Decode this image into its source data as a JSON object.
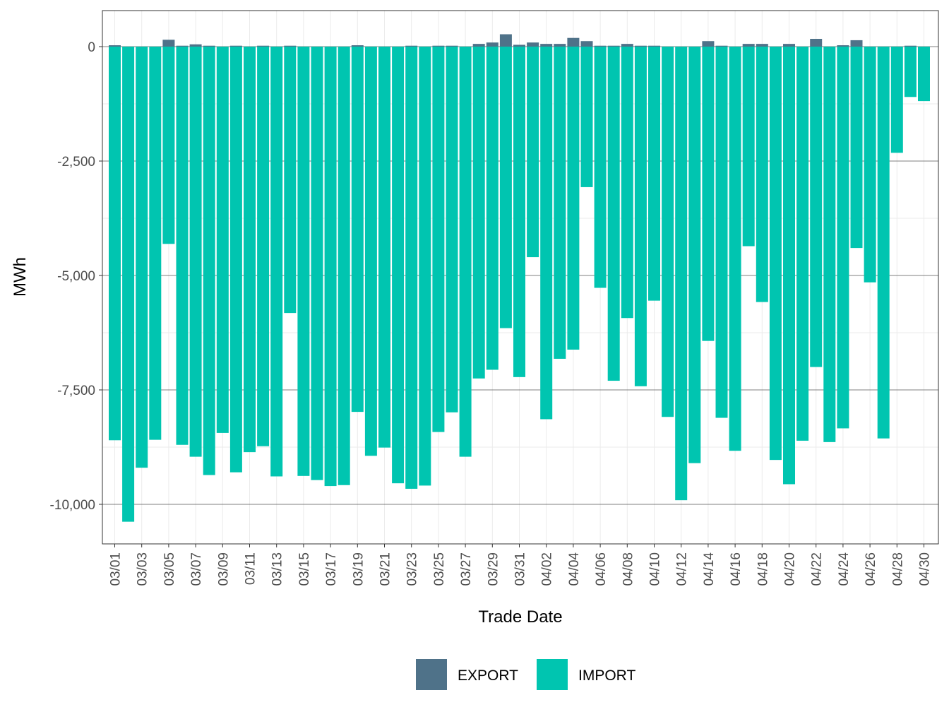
{
  "chart_data": {
    "type": "bar",
    "stacked": true,
    "xlabel": "Trade Date",
    "ylabel": "MWh",
    "ylim": [
      -10800,
      800
    ],
    "y_ticks": [
      {
        "value": 0,
        "label": "0"
      },
      {
        "value": -2500,
        "label": "-2,500"
      },
      {
        "value": -5000,
        "label": "-5,000"
      },
      {
        "value": -7500,
        "label": "-7,500"
      },
      {
        "value": -10000,
        "label": "-10,000"
      }
    ],
    "x_tick_labels": [
      "03/01",
      "03/03",
      "03/05",
      "03/07",
      "03/09",
      "03/11",
      "03/13",
      "03/15",
      "03/17",
      "03/19",
      "03/21",
      "03/23",
      "03/25",
      "03/27",
      "03/29",
      "03/31",
      "04/02",
      "04/04",
      "04/06",
      "04/08",
      "04/10",
      "04/12",
      "04/14",
      "04/16",
      "04/18",
      "04/20",
      "04/22",
      "04/24",
      "04/26",
      "04/28",
      "04/30"
    ],
    "categories": [
      "03/01",
      "03/02",
      "03/03",
      "03/04",
      "03/05",
      "03/06",
      "03/07",
      "03/08",
      "03/09",
      "03/10",
      "03/11",
      "03/12",
      "03/13",
      "03/14",
      "03/15",
      "03/16",
      "03/17",
      "03/18",
      "03/19",
      "03/20",
      "03/21",
      "03/22",
      "03/23",
      "03/24",
      "03/25",
      "03/26",
      "03/27",
      "03/28",
      "03/29",
      "03/30",
      "03/31",
      "04/01",
      "04/02",
      "04/03",
      "04/04",
      "04/05",
      "04/06",
      "04/07",
      "04/08",
      "04/09",
      "04/10",
      "04/11",
      "04/12",
      "04/13",
      "04/14",
      "04/15",
      "04/16",
      "04/17",
      "04/18",
      "04/19",
      "04/20",
      "04/21",
      "04/22",
      "04/23",
      "04/24",
      "04/25",
      "04/26",
      "04/27",
      "04/28",
      "04/29",
      "04/30"
    ],
    "series": [
      {
        "name": "EXPORT",
        "color": "#4f7289",
        "values": [
          30,
          0,
          0,
          0,
          150,
          20,
          50,
          20,
          0,
          20,
          0,
          20,
          0,
          20,
          0,
          0,
          0,
          0,
          30,
          0,
          0,
          0,
          20,
          0,
          20,
          20,
          0,
          60,
          90,
          270,
          40,
          90,
          60,
          60,
          190,
          120,
          20,
          20,
          60,
          20,
          20,
          0,
          0,
          0,
          120,
          20,
          0,
          60,
          60,
          0,
          60,
          0,
          170,
          0,
          30,
          140,
          0,
          0,
          0,
          20,
          0
        ]
      },
      {
        "name": "IMPORT",
        "color": "#00c5b0",
        "values": [
          -8600,
          -10380,
          -9200,
          -8590,
          -4310,
          -8700,
          -8960,
          -9360,
          -8440,
          -9300,
          -8860,
          -8730,
          -9390,
          -5820,
          -9380,
          -9470,
          -9600,
          -9580,
          -7980,
          -8940,
          -8760,
          -9540,
          -9660,
          -9590,
          -8420,
          -7990,
          -8960,
          -7250,
          -7060,
          -6150,
          -7220,
          -4600,
          -8140,
          -6820,
          -6620,
          -3070,
          -5270,
          -7300,
          -5930,
          -7420,
          -5550,
          -8090,
          -9910,
          -9100,
          -6430,
          -8110,
          -8830,
          -4360,
          -5580,
          -9030,
          -9560,
          -8610,
          -7000,
          -8640,
          -8340,
          -4400,
          -5150,
          -8560,
          -2320,
          -1100,
          -1190
        ]
      }
    ],
    "legend": {
      "position": "bottom",
      "entries": [
        "EXPORT",
        "IMPORT"
      ]
    },
    "grid": true
  }
}
